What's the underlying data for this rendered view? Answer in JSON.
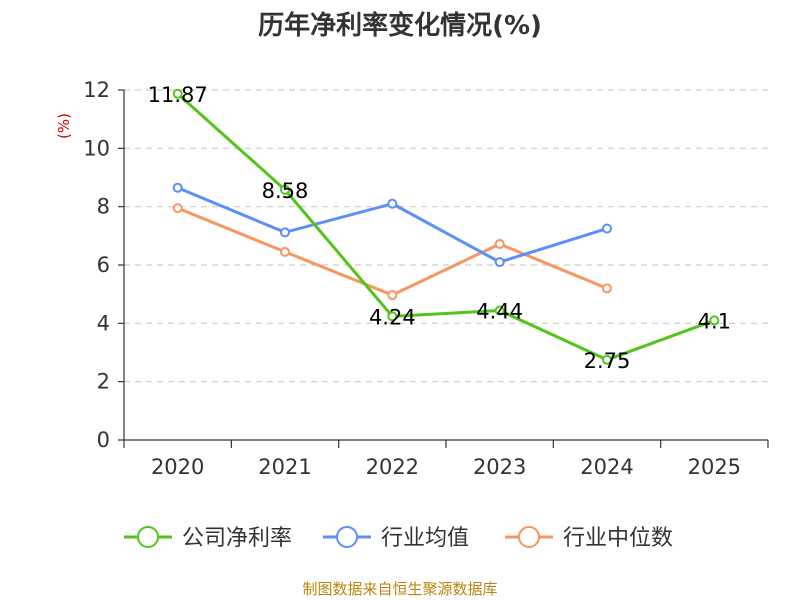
{
  "chart_data": {
    "type": "line",
    "title": "历年净利率变化情况(%)",
    "ylabel": "(%)",
    "xlabel": "",
    "categories": [
      "2020",
      "2021",
      "2022",
      "2023",
      "2024",
      "2025"
    ],
    "ylim": [
      0,
      12
    ],
    "yticks": [
      0,
      2,
      4,
      6,
      8,
      10,
      12
    ],
    "grid": true,
    "legend_position": "bottom",
    "series": [
      {
        "name": "公司净利率",
        "color": "#52c41a",
        "values": [
          11.87,
          8.58,
          4.24,
          4.44,
          2.75,
          4.1
        ],
        "labels": [
          "11.87",
          "8.58",
          "4.24",
          "4.44",
          "2.75",
          "4.1"
        ]
      },
      {
        "name": "行业均值",
        "color": "#5b8ff9",
        "values": [
          8.65,
          7.12,
          8.1,
          6.1,
          7.25,
          null
        ]
      },
      {
        "name": "行业中位数",
        "color": "#f79661",
        "values": [
          7.95,
          6.45,
          4.97,
          6.72,
          5.2,
          null
        ]
      }
    ]
  },
  "source": "制图数据来自恒生聚源数据库"
}
